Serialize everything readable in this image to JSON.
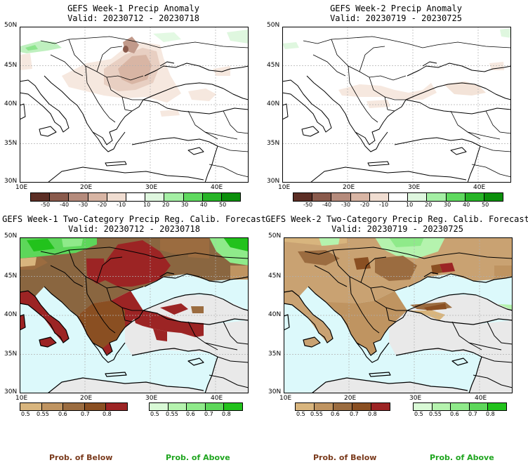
{
  "panels": [
    {
      "title": "GEFS Week-1 Precip Anomaly",
      "subtitle": "Valid: 20230712 - 20230718"
    },
    {
      "title": "GEFS Week-2 Precip Anomaly",
      "subtitle": "Valid: 20230719 - 20230725"
    },
    {
      "title": "GEFS Week-1 Two-Category Precip Reg. Calib. Forecast",
      "subtitle": "Valid: 20230712 - 20230718"
    },
    {
      "title": "GEFS Week-2 Two-Category Precip Reg. Calib. Forecast",
      "subtitle": "Valid: 20230719 - 20230725"
    }
  ],
  "axes": {
    "lat_labels": [
      "50N",
      "45N",
      "40N",
      "35N",
      "30N"
    ],
    "lon_labels": [
      "10E",
      "20E",
      "30E",
      "40E"
    ]
  },
  "anomaly_colorbar": {
    "labels": [
      "-50",
      "-40",
      "-30",
      "-20",
      "-10",
      "10",
      "20",
      "30",
      "40",
      "50"
    ],
    "colors": [
      "#5c2e25",
      "#8a5a4c",
      "#b58b7c",
      "#d8b5a4",
      "#f0ddd1",
      "#ffffff",
      "#dff7df",
      "#a4efa4",
      "#5fd95f",
      "#27b427",
      "#0b8f0b"
    ]
  },
  "prob_below_colorbar": {
    "labels": [
      "0.5",
      "0.55",
      "0.6",
      "0.7",
      "0.8"
    ],
    "colors": [
      "#d8b57e",
      "#bf9461",
      "#9b6c40",
      "#8a4f22",
      "#9c2424"
    ]
  },
  "prob_above_colorbar": {
    "labels": [
      "0.5",
      "0.55",
      "0.6",
      "0.7",
      "0.8"
    ],
    "colors": [
      "#d9fad6",
      "#b5f3ae",
      "#8fea8a",
      "#5dd75a",
      "#22c21c"
    ]
  },
  "legend": {
    "below": "Prob. of Below",
    "above": "Prob. of Above",
    "below_color": "#7a3a1c",
    "above_color": "#1fa51f"
  },
  "colors": {
    "sea": "#dcf9fb",
    "no_signal": "#e9e9e9"
  }
}
